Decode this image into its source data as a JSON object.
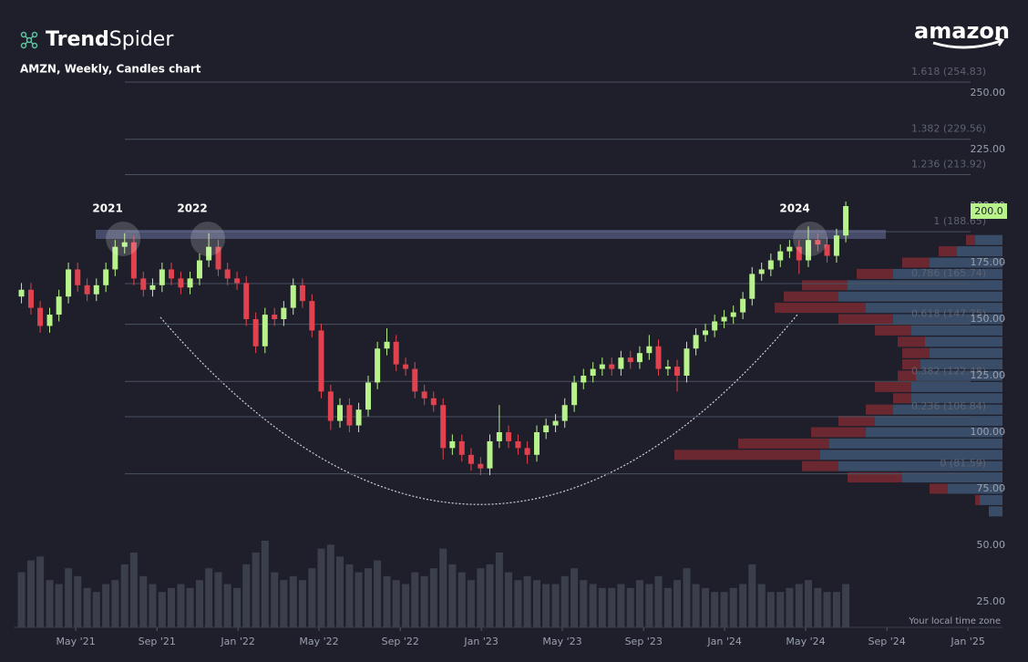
{
  "chart_data": {
    "type": "candlestick",
    "brand": [
      "Trend",
      "Spider"
    ],
    "company": "amazon",
    "title": "AMZN, Weekly, Candles chart",
    "footnote": "Your local time zone",
    "xlim": [
      2021.078,
      2025.142
    ],
    "ylim": [
      13.71,
      266.94
    ],
    "xticks": [
      {
        "value": 2021.333,
        "label": "May '21"
      },
      {
        "value": 2021.667,
        "label": "Sep '21"
      },
      {
        "value": 2022.0,
        "label": "Jan '22"
      },
      {
        "value": 2022.333,
        "label": "May '22"
      },
      {
        "value": 2022.667,
        "label": "Sep '22"
      },
      {
        "value": 2023.0,
        "label": "Jan '23"
      },
      {
        "value": 2023.333,
        "label": "May '23"
      },
      {
        "value": 2023.667,
        "label": "Sep '23"
      },
      {
        "value": 2024.0,
        "label": "Jan '24"
      },
      {
        "value": 2024.333,
        "label": "May '24"
      },
      {
        "value": 2024.667,
        "label": "Sep '24"
      },
      {
        "value": 2025.0,
        "label": "Jan '25"
      }
    ],
    "yticks": [
      {
        "value": 25,
        "label": "25.00"
      },
      {
        "value": 50,
        "label": "50.00"
      },
      {
        "value": 75,
        "label": "75.00"
      },
      {
        "value": 100,
        "label": "100.00"
      },
      {
        "value": 125,
        "label": "125.00"
      },
      {
        "value": 150,
        "label": "150.00"
      },
      {
        "value": 175,
        "label": "175.00"
      },
      {
        "value": 200,
        "label": "200.00"
      },
      {
        "value": 225,
        "label": "225.00"
      },
      {
        "value": 250,
        "label": "250.00"
      }
    ],
    "up_color": "#b8f28a",
    "down_color": "#e0434f",
    "volume_color": "#3b3f4b",
    "candles": {
      "x": [
        2021.11,
        2021.149,
        2021.187,
        2021.226,
        2021.264,
        2021.303,
        2021.341,
        2021.38,
        2021.418,
        2021.457,
        2021.495,
        2021.534,
        2021.572,
        2021.611,
        2021.649,
        2021.688,
        2021.726,
        2021.765,
        2021.803,
        2021.842,
        2021.88,
        2021.919,
        2021.957,
        2021.996,
        2022.034,
        2022.073,
        2022.111,
        2022.15,
        2022.188,
        2022.227,
        2022.265,
        2022.304,
        2022.342,
        2022.381,
        2022.419,
        2022.458,
        2022.496,
        2022.535,
        2022.573,
        2022.612,
        2022.65,
        2022.689,
        2022.727,
        2022.766,
        2022.804,
        2022.843,
        2022.881,
        2022.92,
        2022.958,
        2022.997,
        2023.035,
        2023.074,
        2023.112,
        2023.151,
        2023.189,
        2023.228,
        2023.266,
        2023.305,
        2023.343,
        2023.382,
        2023.42,
        2023.459,
        2023.497,
        2023.536,
        2023.574,
        2023.613,
        2023.651,
        2023.69,
        2023.728,
        2023.767,
        2023.805,
        2023.844,
        2023.882,
        2023.921,
        2023.959,
        2023.998,
        2024.036,
        2024.075,
        2024.113,
        2024.152,
        2024.19,
        2024.229,
        2024.267,
        2024.306,
        2024.344,
        2024.383,
        2024.421,
        2024.46,
        2024.498
      ],
      "open": [
        160,
        163,
        155,
        147,
        152,
        160,
        172,
        165,
        161,
        165,
        172,
        182,
        184,
        168,
        163,
        165,
        172,
        168,
        164,
        168,
        176,
        182,
        172,
        168,
        166,
        150,
        138,
        152,
        150,
        155,
        165,
        158,
        145,
        118,
        105,
        112,
        103,
        110,
        122,
        137,
        140,
        130,
        128,
        118,
        115,
        112,
        93,
        96,
        90,
        86,
        84,
        96,
        100,
        96,
        93,
        90,
        100,
        103,
        105,
        112,
        122,
        125,
        128,
        130,
        128,
        133,
        131,
        135,
        138,
        128,
        129,
        125,
        137,
        143,
        145,
        149,
        151,
        153,
        159,
        170,
        172,
        176,
        180,
        182,
        176,
        185,
        183,
        178,
        187
      ],
      "high": [
        166,
        166,
        158,
        155,
        163,
        175,
        175,
        168,
        168,
        175,
        185,
        188,
        187,
        171,
        168,
        175,
        175,
        171,
        171,
        179,
        188,
        185,
        175,
        171,
        169,
        153,
        155,
        155,
        158,
        168,
        168,
        161,
        148,
        121,
        115,
        115,
        113,
        125,
        140,
        146,
        143,
        133,
        131,
        121,
        118,
        115,
        99,
        99,
        93,
        89,
        99,
        112,
        103,
        99,
        96,
        103,
        106,
        108,
        115,
        125,
        128,
        131,
        133,
        133,
        136,
        136,
        138,
        143,
        141,
        132,
        132,
        140,
        146,
        148,
        152,
        154,
        156,
        162,
        173,
        175,
        179,
        183,
        185,
        185,
        191,
        188,
        186,
        190,
        202
      ],
      "low": [
        157,
        152,
        144,
        144,
        149,
        157,
        162,
        158,
        158,
        162,
        169,
        179,
        165,
        160,
        160,
        162,
        165,
        161,
        161,
        165,
        173,
        169,
        165,
        163,
        147,
        135,
        135,
        147,
        147,
        152,
        155,
        142,
        115,
        101,
        102,
        100,
        100,
        107,
        119,
        134,
        127,
        125,
        115,
        112,
        109,
        88,
        90,
        87,
        83,
        81,
        81,
        93,
        93,
        90,
        86,
        87,
        97,
        100,
        102,
        109,
        119,
        122,
        125,
        125,
        125,
        128,
        128,
        132,
        125,
        125,
        118,
        122,
        134,
        140,
        142,
        146,
        148,
        150,
        156,
        167,
        169,
        173,
        177,
        170,
        173,
        180,
        175,
        175,
        184
      ],
      "close": [
        163,
        155,
        147,
        152,
        160,
        172,
        165,
        161,
        165,
        172,
        182,
        184,
        168,
        163,
        165,
        172,
        168,
        164,
        168,
        176,
        182,
        172,
        168,
        166,
        150,
        138,
        152,
        150,
        155,
        165,
        158,
        145,
        118,
        105,
        112,
        103,
        110,
        122,
        137,
        140,
        130,
        128,
        118,
        115,
        112,
        93,
        96,
        90,
        86,
        84,
        96,
        100,
        96,
        93,
        90,
        100,
        103,
        105,
        112,
        122,
        125,
        128,
        130,
        128,
        133,
        131,
        135,
        138,
        128,
        129,
        125,
        137,
        143,
        145,
        149,
        151,
        153,
        159,
        170,
        172,
        176,
        180,
        182,
        176,
        185,
        183,
        178,
        187,
        200
      ],
      "volume": [
        70,
        85,
        90,
        60,
        55,
        75,
        65,
        50,
        45,
        55,
        60,
        80,
        95,
        65,
        55,
        45,
        50,
        55,
        50,
        60,
        75,
        70,
        55,
        50,
        80,
        95,
        110,
        70,
        60,
        65,
        60,
        75,
        100,
        105,
        90,
        80,
        70,
        75,
        85,
        65,
        60,
        55,
        70,
        65,
        75,
        100,
        80,
        70,
        60,
        75,
        80,
        95,
        70,
        60,
        65,
        60,
        55,
        55,
        65,
        75,
        60,
        55,
        50,
        50,
        55,
        50,
        60,
        55,
        65,
        50,
        60,
        75,
        55,
        50,
        45,
        45,
        50,
        55,
        80,
        55,
        45,
        45,
        50,
        55,
        60,
        50,
        45,
        45,
        55
      ]
    },
    "fib_levels": [
      {
        "value": 254.83,
        "label": "1.618 (254.83)"
      },
      {
        "value": 229.56,
        "label": "1.382 (229.56)"
      },
      {
        "value": 213.92,
        "label": "1.236 (213.92)"
      },
      {
        "value": 188.65,
        "label": "1 (188.65)"
      },
      {
        "value": 165.74,
        "label": "0.786 (165.74)"
      },
      {
        "value": 147.75,
        "label": "0.618 (147.75)"
      },
      {
        "value": 122.48,
        "label": "0.382 (122.48)"
      },
      {
        "value": 106.84,
        "label": "0.236 (106.84)"
      },
      {
        "value": 81.59,
        "label": "0 (81.59)"
      }
    ],
    "band": [
      185.5,
      189.5
    ],
    "annotations": [
      {
        "text": "2021",
        "x": 2021.528,
        "y": 185.5
      },
      {
        "text": "2022",
        "x": 2021.876,
        "y": 185.5
      },
      {
        "text": "2024",
        "x": 2024.352,
        "y": 185.5
      }
    ],
    "last_price": {
      "value": 200,
      "label": "200.0"
    },
    "volume_profile": {
      "price": [
        65,
        70,
        75,
        80,
        85,
        90,
        95,
        100,
        105,
        110,
        115,
        120,
        125,
        130,
        135,
        140,
        145,
        150,
        155,
        160,
        165,
        170,
        175,
        180,
        185
      ],
      "up": [
        15,
        25,
        60,
        110,
        180,
        200,
        190,
        150,
        140,
        120,
        100,
        100,
        95,
        90,
        80,
        85,
        100,
        120,
        150,
        180,
        170,
        120,
        80,
        50,
        30
      ],
      "down": [
        0,
        5,
        20,
        60,
        40,
        160,
        100,
        60,
        40,
        30,
        20,
        40,
        20,
        20,
        30,
        30,
        40,
        60,
        100,
        60,
        50,
        40,
        30,
        20,
        10
      ]
    }
  }
}
